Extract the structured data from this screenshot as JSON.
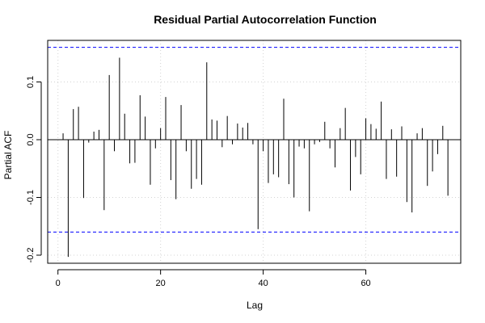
{
  "chart_data": {
    "type": "bar",
    "title": "Residual Partial Autocorrelation Function",
    "xlabel": "Lag",
    "ylabel": "Partial ACF",
    "xlim": [
      -2,
      78.5
    ],
    "ylim": [
      -0.214,
      0.172
    ],
    "xticks": [
      0,
      20,
      40,
      60
    ],
    "yticks": [
      -0.2,
      -0.1,
      0.0,
      0.1
    ],
    "ytick_labels": [
      "-0.2",
      "-0.1",
      "0.0",
      "0.1"
    ],
    "grid": true,
    "confidence_bound": 0.16,
    "colors": {
      "bars": "#000000",
      "confidence": "#0000ff",
      "zero_line": "#000000",
      "grid": "#d3d3d3"
    },
    "lags": [
      1,
      2,
      3,
      4,
      5,
      6,
      7,
      8,
      9,
      10,
      11,
      12,
      13,
      14,
      15,
      16,
      17,
      18,
      19,
      20,
      21,
      22,
      23,
      24,
      25,
      26,
      27,
      28,
      29,
      30,
      31,
      32,
      33,
      34,
      35,
      36,
      37,
      38,
      39,
      40,
      41,
      42,
      43,
      44,
      45,
      46,
      47,
      48,
      49,
      50,
      51,
      52,
      53,
      54,
      55,
      56,
      57,
      58,
      59,
      60,
      61,
      62,
      63,
      64,
      65,
      66,
      67,
      68,
      69,
      70,
      71,
      72,
      73,
      74,
      75,
      76
    ],
    "values": [
      0.011,
      -0.203,
      0.053,
      0.057,
      -0.101,
      -0.005,
      0.014,
      0.017,
      -0.122,
      0.112,
      -0.02,
      0.142,
      0.045,
      -0.041,
      -0.04,
      0.077,
      0.04,
      -0.078,
      -0.015,
      0.02,
      0.074,
      -0.07,
      -0.103,
      0.06,
      -0.02,
      -0.085,
      -0.068,
      -0.078,
      0.134,
      0.035,
      0.033,
      -0.013,
      0.041,
      -0.008,
      0.028,
      0.021,
      0.029,
      -0.008,
      -0.155,
      -0.02,
      -0.075,
      -0.06,
      -0.065,
      0.071,
      -0.077,
      -0.1,
      -0.012,
      -0.015,
      -0.124,
      -0.008,
      -0.004,
      0.031,
      -0.015,
      -0.048,
      0.02,
      0.055,
      -0.088,
      -0.03,
      -0.06,
      0.037,
      0.027,
      0.019,
      0.066,
      -0.068,
      0.018,
      -0.064,
      0.023,
      -0.108,
      -0.126,
      0.011,
      0.02,
      -0.08,
      -0.055,
      -0.025,
      0.024,
      -0.097
    ]
  }
}
